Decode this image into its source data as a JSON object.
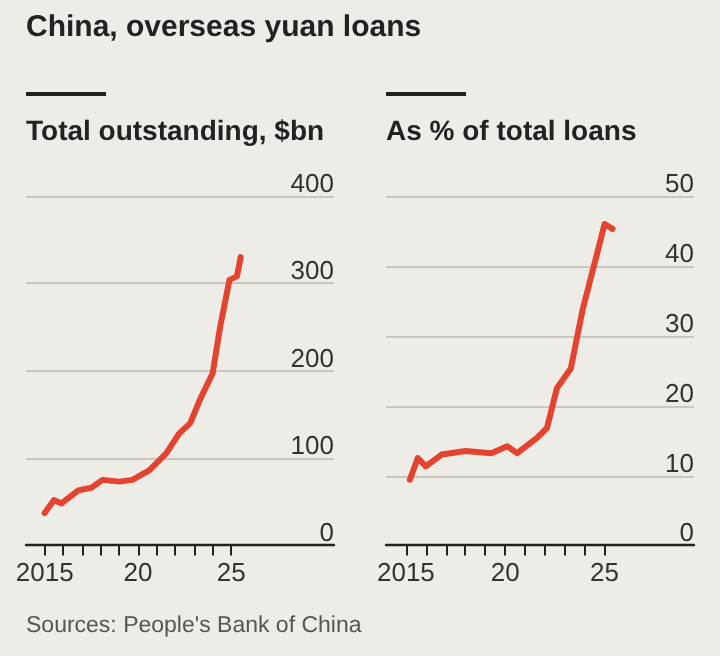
{
  "chart_data": [
    {
      "type": "line",
      "title": "China, overseas yuan loans",
      "ylabel": "Total outstanding, $bn",
      "annotations": [
        "Sources: People's Bank of China"
      ],
      "series": [
        {
          "color": "#e3432f",
          "x": [
            2015.0,
            2015.5,
            2015.9,
            2016.8,
            2017.5,
            2018.1,
            2019.0,
            2019.7,
            2020.6,
            2021.5,
            2022.2,
            2022.8,
            2023.3,
            2024.0,
            2024.4,
            2024.9,
            2025.3,
            2025.5
          ],
          "values": [
            37,
            52,
            48,
            63,
            66,
            75,
            73,
            75,
            86,
            105,
            128,
            140,
            166,
            197,
            250,
            304,
            308,
            330
          ]
        }
      ],
      "xlim": [
        2014,
        2030.5
      ],
      "xticks": [
        {
          "value": 2015,
          "label": "2015"
        },
        {
          "value": 2016,
          "label": null
        },
        {
          "value": 2017,
          "label": null
        },
        {
          "value": 2018,
          "label": null
        },
        {
          "value": 2019,
          "label": null
        },
        {
          "value": 2020,
          "label": "20"
        },
        {
          "value": 2021,
          "label": null
        },
        {
          "value": 2022,
          "label": null
        },
        {
          "value": 2023,
          "label": null
        },
        {
          "value": 2024,
          "label": null
        },
        {
          "value": 2025,
          "label": "25"
        }
      ],
      "ylim": [
        0,
        400
      ],
      "yticks": [
        0,
        100,
        200,
        300,
        400
      ],
      "grid": "y",
      "marker": "none",
      "line_style": "solid"
    },
    {
      "type": "line",
      "ylabel": "As % of total loans",
      "series": [
        {
          "color": "#e3432f",
          "x": [
            2015.2,
            2015.6,
            2016.0,
            2016.8,
            2018.0,
            2019.3,
            2020.1,
            2020.6,
            2021.6,
            2022.1,
            2022.6,
            2023.3,
            2023.9,
            2024.5,
            2025.0,
            2025.4
          ],
          "values": [
            9.4,
            12.5,
            11.3,
            13,
            13.5,
            13.2,
            14.2,
            13.2,
            15.4,
            16.8,
            22.5,
            25.3,
            33.8,
            40.4,
            46,
            45.3
          ]
        }
      ],
      "xlim": [
        2014,
        2029.5
      ],
      "xticks": [
        {
          "value": 2015,
          "label": "2015"
        },
        {
          "value": 2016,
          "label": null
        },
        {
          "value": 2017,
          "label": null
        },
        {
          "value": 2018,
          "label": null
        },
        {
          "value": 2019,
          "label": null
        },
        {
          "value": 2020,
          "label": "20"
        },
        {
          "value": 2021,
          "label": null
        },
        {
          "value": 2022,
          "label": null
        },
        {
          "value": 2023,
          "label": null
        },
        {
          "value": 2024,
          "label": null
        },
        {
          "value": 2025,
          "label": "25"
        }
      ],
      "ylim": [
        0,
        50
      ],
      "yticks": [
        0,
        10,
        20,
        30,
        40,
        50
      ],
      "grid": "y",
      "marker": "none",
      "line_style": "solid"
    }
  ]
}
